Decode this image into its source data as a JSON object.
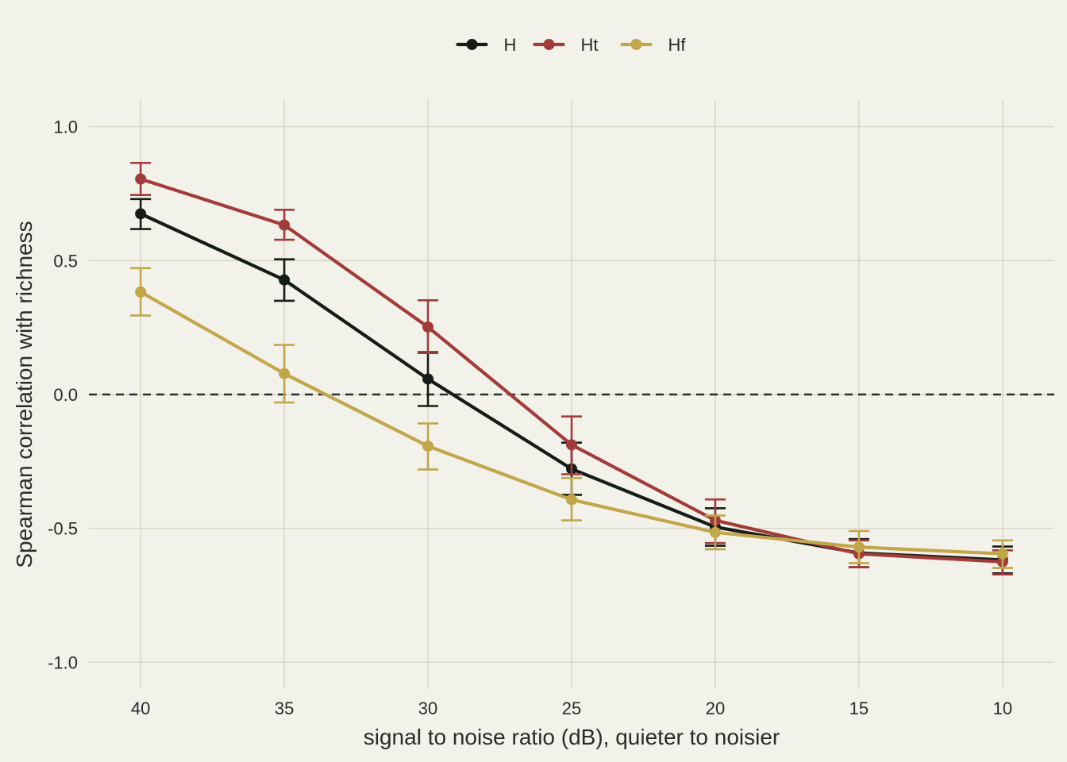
{
  "chart_data": {
    "type": "line",
    "xlabel": "signal to noise ratio (dB), quieter to noisier",
    "ylabel": "Spearman correlation with richness",
    "x": [
      40,
      35,
      30,
      25,
      20,
      15,
      10
    ],
    "x_order": "descending",
    "xlim": [
      41.8,
      8.2
    ],
    "ylim": [
      -1.1,
      1.1
    ],
    "y_ticks": [
      1.0,
      0.5,
      0.0,
      -0.5,
      -1.0
    ],
    "y_tick_labels": [
      "1.0",
      "0.5",
      "0.0",
      "-0.5",
      "-1.0"
    ],
    "x_tick_labels": [
      "40",
      "35",
      "30",
      "25",
      "20",
      "15",
      "10"
    ],
    "grid": true,
    "reference_line": {
      "y": 0,
      "style": "dashed",
      "color": "#2b2b2b"
    },
    "legend": {
      "placement": "top-center"
    },
    "series": [
      {
        "name": "H",
        "color": "#151c17",
        "values": [
          0.675,
          0.428,
          0.058,
          -0.278,
          -0.495,
          -0.592,
          -0.618
        ],
        "err_low": [
          0.618,
          0.35,
          -0.043,
          -0.375,
          -0.565,
          -0.645,
          -0.668
        ],
        "err_high": [
          0.73,
          0.505,
          0.158,
          -0.18,
          -0.425,
          -0.54,
          -0.568
        ]
      },
      {
        "name": "Ht",
        "color": "#a23c3a",
        "values": [
          0.805,
          0.633,
          0.252,
          -0.188,
          -0.47,
          -0.595,
          -0.625
        ],
        "err_low": [
          0.745,
          0.578,
          0.155,
          -0.298,
          -0.555,
          -0.645,
          -0.672
        ],
        "err_high": [
          0.865,
          0.69,
          0.352,
          -0.082,
          -0.392,
          -0.545,
          -0.582
        ]
      },
      {
        "name": "Hf",
        "color": "#c2a64a",
        "values": [
          0.383,
          0.078,
          -0.193,
          -0.393,
          -0.515,
          -0.57,
          -0.595
        ],
        "err_low": [
          0.295,
          -0.03,
          -0.28,
          -0.47,
          -0.578,
          -0.63,
          -0.648
        ],
        "err_high": [
          0.472,
          0.185,
          -0.108,
          -0.312,
          -0.452,
          -0.51,
          -0.545
        ]
      }
    ]
  }
}
